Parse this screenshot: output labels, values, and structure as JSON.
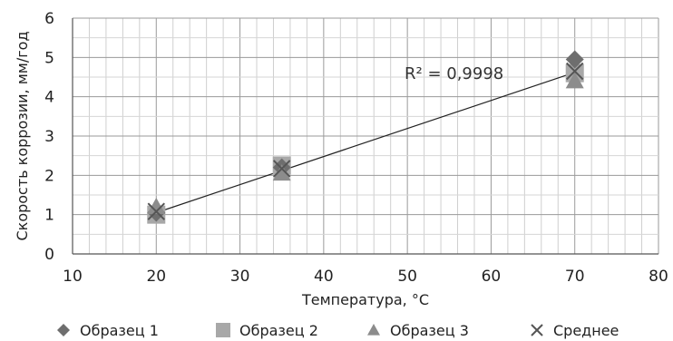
{
  "chart_data": {
    "type": "scatter",
    "xlabel": "Температура,  °С",
    "ylabel": "Скорость коррозии, мм/год",
    "xlim": [
      10,
      80
    ],
    "ylim": [
      0,
      6
    ],
    "xticks": [
      "10",
      "20",
      "30",
      "40",
      "50",
      "60",
      "70",
      "80"
    ],
    "yticks": [
      "0",
      "1",
      "2",
      "3",
      "4",
      "5",
      "6"
    ],
    "grid": true,
    "legend_position": "bottom",
    "series": [
      {
        "name": "Образец 1",
        "marker": "diamond",
        "color": "#6e6e6e",
        "x": [
          20,
          35,
          70
        ],
        "y": [
          1.05,
          2.2,
          4.95
        ]
      },
      {
        "name": "Образец 2",
        "marker": "square",
        "color": "#a8a8a8",
        "x": [
          20,
          35,
          70
        ],
        "y": [
          1.0,
          2.25,
          4.6
        ]
      },
      {
        "name": "Образец 3",
        "marker": "triangle",
        "color": "#8c8c8c",
        "x": [
          20,
          35,
          70
        ],
        "y": [
          1.2,
          2.05,
          4.4
        ]
      },
      {
        "name": "Среднее",
        "marker": "x",
        "color": "#555555",
        "x": [
          20,
          35,
          70
        ],
        "y": [
          1.08,
          2.17,
          4.65
        ]
      }
    ],
    "trendline": {
      "x": [
        20,
        70
      ],
      "y": [
        1.05,
        4.62
      ]
    },
    "annotation": "R² = 0,9998"
  }
}
